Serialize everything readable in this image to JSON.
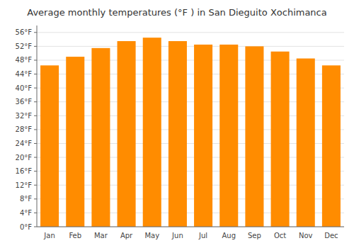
{
  "chart_data": {
    "type": "bar",
    "title": "Average monthly temperatures (°F ) in San Dieguito Xochimanca",
    "categories": [
      "Jan",
      "Feb",
      "Mar",
      "Apr",
      "May",
      "Jun",
      "Jul",
      "Aug",
      "Sep",
      "Oct",
      "Nov",
      "Dec"
    ],
    "values": [
      46.5,
      49.0,
      51.5,
      53.5,
      54.5,
      53.5,
      52.5,
      52.5,
      52.0,
      50.5,
      48.5,
      46.5
    ],
    "color": "#FF8C00",
    "ylim": [
      0,
      58
    ],
    "yticks": [
      {
        "value": 0,
        "label": "0°F"
      },
      {
        "value": 4,
        "label": "4°F"
      },
      {
        "value": 8,
        "label": "8°F"
      },
      {
        "value": 12,
        "label": "12°F"
      },
      {
        "value": 16,
        "label": "16°F"
      },
      {
        "value": 20,
        "label": "20°F"
      },
      {
        "value": 24,
        "label": "24°F"
      },
      {
        "value": 28,
        "label": "28°F"
      },
      {
        "value": 32,
        "label": "32°F"
      },
      {
        "value": 36,
        "label": "36°F"
      },
      {
        "value": 40,
        "label": "40°F"
      },
      {
        "value": 44,
        "label": "44°F"
      },
      {
        "value": 48,
        "label": "48°F"
      },
      {
        "value": 52,
        "label": "52°F"
      },
      {
        "value": 56,
        "label": "56°F"
      }
    ],
    "grid": true
  }
}
